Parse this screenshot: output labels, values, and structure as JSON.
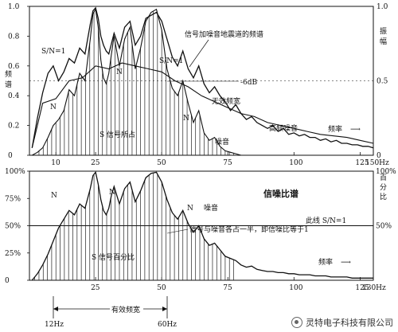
{
  "chart_data": [
    {
      "type": "area",
      "xlim": [
        0,
        130
      ],
      "ylim": [
        0,
        1.0
      ],
      "x_ticks": [
        "10",
        "25",
        "50",
        "75",
        "100",
        "125",
        "150Hz"
      ],
      "y_left_ticks": [
        "1.0",
        "0.8",
        "0.6",
        "0.4",
        "0.2",
        "0"
      ],
      "y_right_ticks": [
        "1.0",
        "0.5",
        "0"
      ],
      "y_left_label": "振\n幅",
      "y_right_label": "频\n率",
      "x_axis_label": "频率",
      "annotations": [
        "S/N=1",
        "N",
        "N",
        "S/N=1",
        "信号加噪音地震道的频谱",
        "-6dB",
        "无效频宽",
        "S 信号所占",
        "N",
        "噪音",
        "高频噪音"
      ],
      "series": [
        {
          "name": "signal+noise",
          "x": [
            1,
            3,
            5,
            7,
            9,
            11,
            13,
            15,
            17,
            19,
            21,
            23,
            24,
            25,
            26,
            27,
            28,
            29,
            30,
            31,
            32,
            34,
            36,
            38,
            40,
            42,
            44,
            46,
            48,
            50,
            52,
            54,
            56,
            58,
            60,
            62,
            64,
            66,
            68,
            70,
            72,
            74,
            76,
            78,
            80,
            82,
            84,
            86,
            88,
            90,
            92,
            94,
            96,
            98,
            100,
            102,
            104,
            106,
            108,
            110,
            112,
            114,
            116,
            118,
            120,
            122,
            124,
            126,
            128,
            130
          ],
          "y": [
            0.05,
            0.25,
            0.42,
            0.55,
            0.6,
            0.5,
            0.56,
            0.65,
            0.62,
            0.72,
            0.68,
            0.88,
            0.97,
            0.99,
            0.92,
            0.8,
            0.74,
            0.7,
            0.68,
            0.75,
            0.82,
            0.72,
            0.86,
            0.9,
            0.74,
            0.8,
            0.92,
            0.94,
            0.96,
            0.9,
            0.78,
            0.66,
            0.6,
            0.7,
            0.58,
            0.52,
            0.6,
            0.48,
            0.42,
            0.46,
            0.4,
            0.36,
            0.3,
            0.34,
            0.28,
            0.24,
            0.26,
            0.22,
            0.2,
            0.18,
            0.2,
            0.16,
            0.18,
            0.14,
            0.15,
            0.13,
            0.14,
            0.12,
            0.12,
            0.1,
            0.11,
            0.09,
            0.1,
            0.08,
            0.08,
            0.07,
            0.07,
            0.06,
            0.06,
            0.05
          ]
        },
        {
          "name": "signal",
          "x": [
            1,
            3,
            5,
            7,
            9,
            11,
            13,
            15,
            17,
            19,
            21,
            23,
            24,
            25,
            26,
            27,
            28,
            29,
            30,
            31,
            32,
            34,
            36,
            38,
            40,
            42,
            44,
            46,
            48,
            50,
            52,
            54,
            56,
            58,
            60,
            62,
            64,
            66,
            68,
            70,
            72,
            74,
            76,
            78,
            80,
            82,
            84,
            86,
            88,
            90,
            92,
            94,
            96,
            98,
            100,
            102,
            104,
            106,
            108,
            110,
            112,
            114,
            116,
            118,
            120,
            122,
            124,
            126,
            128,
            130
          ],
          "y": [
            0.0,
            0.02,
            0.05,
            0.12,
            0.2,
            0.24,
            0.3,
            0.44,
            0.4,
            0.55,
            0.5,
            0.78,
            0.95,
            0.98,
            0.86,
            0.64,
            0.52,
            0.48,
            0.55,
            0.68,
            0.8,
            0.6,
            0.78,
            0.86,
            0.58,
            0.72,
            0.9,
            0.96,
            0.98,
            0.84,
            0.58,
            0.45,
            0.4,
            0.5,
            0.35,
            0.22,
            0.3,
            0.15,
            0.1,
            0.12,
            0.06,
            0.03,
            0.02,
            0.01,
            0.0,
            0.0,
            0.0,
            0.0,
            0.0,
            0.0,
            0.0,
            0.0,
            0.0,
            0.0,
            0.0,
            0.0,
            0.0,
            0.0,
            0.0,
            0.0,
            0.0,
            0.0,
            0.0,
            0.0,
            0.0,
            0.0,
            0.0,
            0.0,
            0.0,
            0.0
          ]
        },
        {
          "name": "noise",
          "x": [
            1,
            5,
            10,
            15,
            20,
            25,
            30,
            35,
            40,
            45,
            50,
            55,
            60,
            65,
            70,
            75,
            80,
            85,
            90,
            95,
            100,
            105,
            110,
            115,
            120,
            125,
            130
          ],
          "y": [
            0.05,
            0.35,
            0.38,
            0.5,
            0.52,
            0.6,
            0.58,
            0.62,
            0.6,
            0.58,
            0.56,
            0.5,
            0.46,
            0.4,
            0.36,
            0.32,
            0.28,
            0.26,
            0.22,
            0.2,
            0.18,
            0.16,
            0.14,
            0.13,
            0.12,
            0.1,
            0.08
          ]
        }
      ]
    },
    {
      "type": "area",
      "title": "信噪比谱",
      "xlim": [
        0,
        130
      ],
      "ylim": [
        0,
        100
      ],
      "x_ticks": [
        "25",
        "50",
        "75",
        "100",
        "125",
        "130Hz"
      ],
      "y_left_ticks": [
        "100%",
        "75%",
        "50%",
        "25%",
        "0"
      ],
      "y_right_ticks": [
        "100%",
        "50%"
      ],
      "y_right_label": "百\n分\n比",
      "x_axis_label": "频率",
      "annotations": [
        "N",
        "N",
        "N",
        "噪音",
        "此线 S/N=1",
        "信号与噪音各占一半，即信噪比等于1",
        "S 信号百分比"
      ],
      "bandwidth": {
        "label": "有效频宽",
        "low": "12Hz",
        "high": "60Hz"
      },
      "series": [
        {
          "name": "signal-percentage",
          "x": [
            1,
            3,
            5,
            7,
            9,
            11,
            13,
            15,
            17,
            19,
            21,
            23,
            24,
            25,
            26,
            27,
            28,
            29,
            30,
            31,
            32,
            34,
            36,
            38,
            40,
            42,
            44,
            46,
            48,
            50,
            52,
            54,
            56,
            58,
            60,
            62,
            64,
            66,
            68,
            70,
            72,
            74,
            76,
            78,
            80,
            82,
            84,
            86,
            88,
            90,
            92,
            94,
            96,
            98,
            100,
            102,
            104,
            106,
            108,
            110,
            112,
            114,
            116,
            118,
            120,
            122,
            124,
            126,
            128,
            130
          ],
          "y": [
            0,
            6,
            14,
            24,
            36,
            48,
            56,
            64,
            60,
            70,
            66,
            84,
            96,
            99,
            88,
            74,
            64,
            60,
            66,
            78,
            86,
            70,
            84,
            90,
            72,
            82,
            94,
            98,
            99,
            90,
            74,
            62,
            56,
            64,
            52,
            44,
            50,
            38,
            32,
            34,
            28,
            22,
            20,
            18,
            14,
            12,
            13,
            10,
            9,
            8,
            8,
            7,
            7,
            6,
            6,
            5,
            5,
            5,
            4,
            4,
            4,
            3,
            3,
            3,
            3,
            2,
            2,
            2,
            2,
            2
          ]
        }
      ]
    }
  ],
  "watermark": {
    "text": "灵特电子科技有限公司"
  }
}
